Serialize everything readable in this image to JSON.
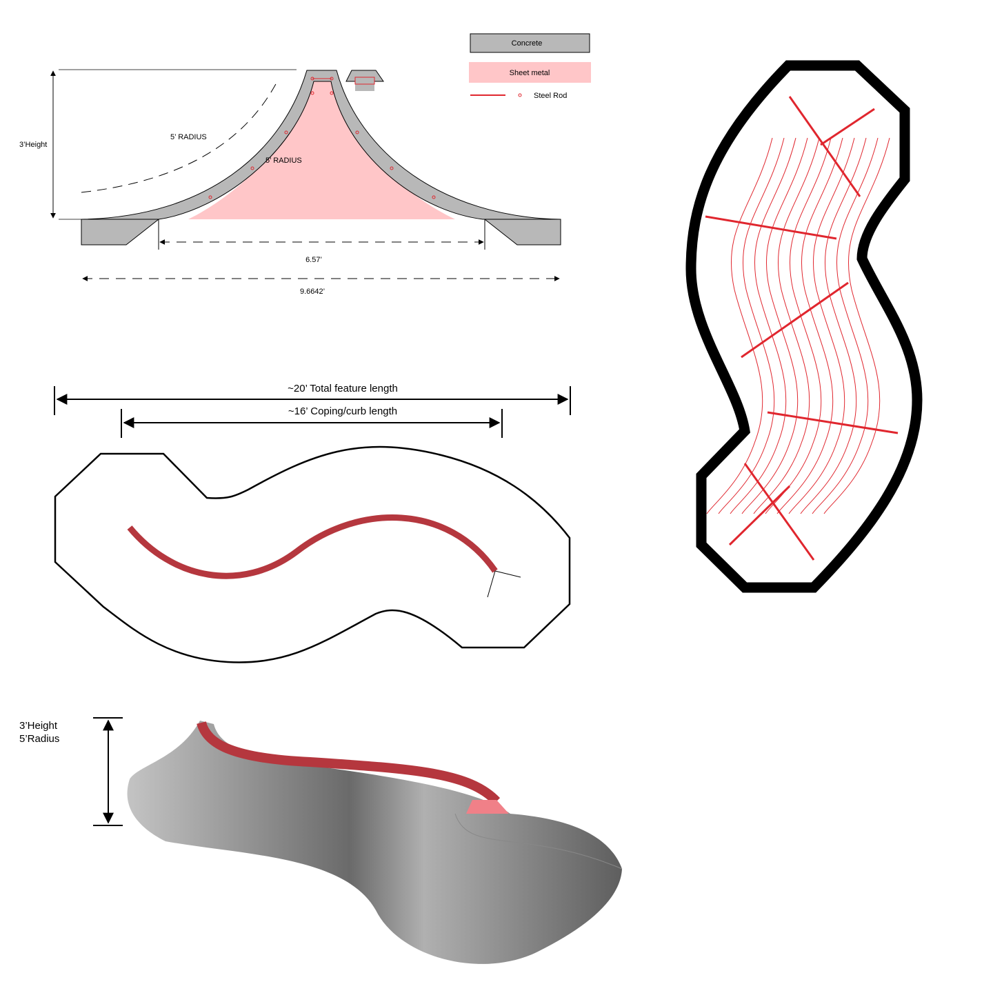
{
  "legend": {
    "items": [
      {
        "label": "Concrete"
      },
      {
        "label": "Sheet metal"
      },
      {
        "label": "Steel Rod"
      }
    ]
  },
  "section": {
    "height_label": "3’Height",
    "radius_labels": [
      "5’ RADIUS",
      "5’ RADIUS"
    ],
    "dimensions": [
      "6.57’",
      "9.6642’"
    ]
  },
  "plan": {
    "dimensions": [
      "~20’ Total feature length",
      "~16’ Coping/curb length"
    ]
  },
  "render": {
    "labels": [
      "3’Height",
      "5’Radius"
    ]
  }
}
